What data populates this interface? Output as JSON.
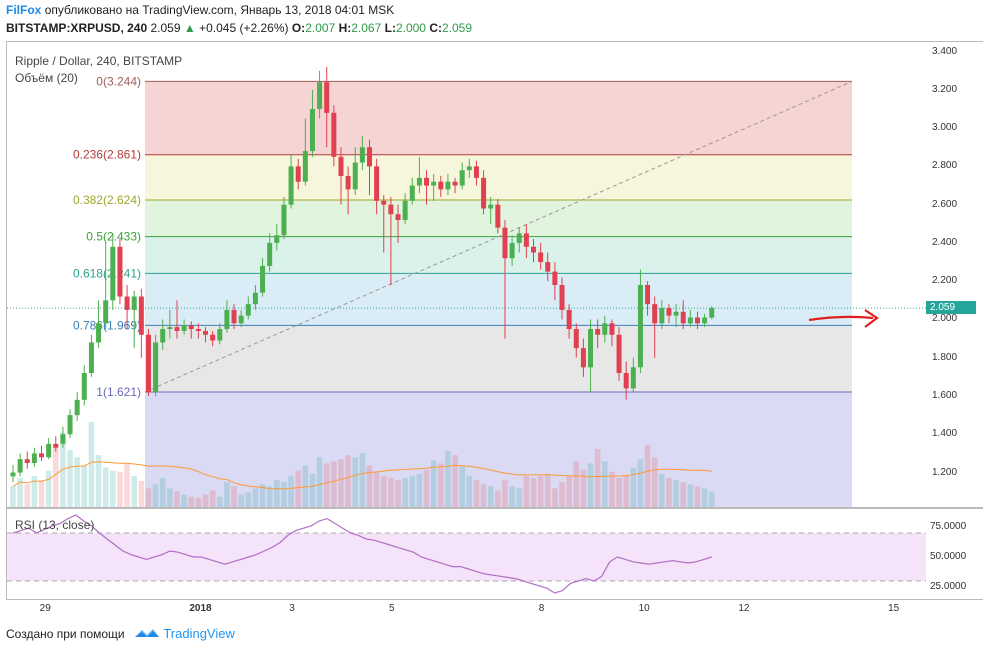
{
  "header": {
    "author": "FilFox",
    "published": "опубликовано на TradingView.com, Январь 13, 2018 04:01 MSK",
    "symbol": "BITSTAMP:XRPUSD, 240",
    "last": "2.059",
    "change": "+0.045 (+2.26%)",
    "o_label": "O:",
    "o_value": "2.007",
    "h_label": "H:",
    "h_value": "2.067",
    "l_label": "L:",
    "l_value": "2.000",
    "c_label": "C:",
    "c_value": "2.059"
  },
  "chart": {
    "title": "Ripple / Dollar, 240, BITSTAMP",
    "volume_label": "Объём (20)",
    "rsi_label": "RSI (13, close)",
    "last_price_label": "2.059"
  },
  "footer": {
    "created_with": "Создано при помощи",
    "brand": "TradingView"
  },
  "colors": {
    "bull": "#26a69a",
    "bear": "#ef5350",
    "bull_candle": "#4caf50",
    "bear_candle": "#e0404f",
    "volume_ma": "#ff9933",
    "rsi_line": "#b06fc5",
    "annotation_arrow": "#e02020"
  },
  "chart_data": [
    {
      "type": "candlestick",
      "title": "Ripple / Dollar, 240, BITSTAMP",
      "y_ticks": [
        "3.400",
        "3.200",
        "3.000",
        "2.800",
        "2.600",
        "2.400",
        "2.200",
        "2.000",
        "1.800",
        "1.600",
        "1.400",
        "1.200"
      ],
      "y_range": [
        1.02,
        3.45
      ],
      "x_ticks": [
        "29",
        "2018",
        "3",
        "5",
        "8",
        "10",
        "12",
        "15"
      ],
      "fib_levels": [
        {
          "label": "0(3.244)",
          "ratio": 0,
          "price": 3.244,
          "color": "#9e5b5b",
          "fill": "#f4cccc"
        },
        {
          "label": "0.236(2.861)",
          "ratio": 0.236,
          "price": 2.861,
          "color": "#b33b3b",
          "fill": "#f3f4d6"
        },
        {
          "label": "0.382(2.624)",
          "ratio": 0.382,
          "price": 2.624,
          "color": "#a0a62a",
          "fill": "#dcf2d8"
        },
        {
          "label": "0.5(2.433)",
          "ratio": 0.5,
          "price": 2.433,
          "color": "#3aa23a",
          "fill": "#d3f0e6"
        },
        {
          "label": "0.618(2.241)",
          "ratio": 0.618,
          "price": 2.241,
          "color": "#2da08c",
          "fill": "#d3e9f3"
        },
        {
          "label": "0.786(1.969)",
          "ratio": 0.786,
          "price": 1.969,
          "color": "#3d7fb8",
          "fill": "#e3e3e3"
        },
        {
          "label": "1(1.621)",
          "ratio": 1,
          "price": 1.621,
          "color": "#6a6abf",
          "fill": "#d4d4f2"
        }
      ],
      "candles": [
        [
          1.18,
          1.2,
          1.15,
          1.24
        ],
        [
          1.2,
          1.27,
          1.18,
          1.3
        ],
        [
          1.27,
          1.25,
          1.22,
          1.31
        ],
        [
          1.25,
          1.3,
          1.23,
          1.33
        ],
        [
          1.3,
          1.28,
          1.26,
          1.34
        ],
        [
          1.28,
          1.35,
          1.27,
          1.38
        ],
        [
          1.35,
          1.33,
          1.31,
          1.39
        ],
        [
          1.35,
          1.4,
          1.33,
          1.44
        ],
        [
          1.4,
          1.5,
          1.38,
          1.53
        ],
        [
          1.5,
          1.58,
          1.47,
          1.62
        ],
        [
          1.58,
          1.72,
          1.55,
          1.76
        ],
        [
          1.72,
          1.88,
          1.7,
          1.92
        ],
        [
          1.88,
          1.98,
          1.85,
          2.1
        ],
        [
          1.98,
          2.1,
          1.95,
          2.4
        ],
        [
          2.1,
          2.38,
          2.05,
          2.45
        ],
        [
          2.38,
          2.12,
          2.08,
          2.42
        ],
        [
          2.12,
          2.05,
          1.95,
          2.18
        ],
        [
          2.05,
          2.12,
          1.85,
          2.15
        ],
        [
          2.12,
          1.92,
          1.8,
          2.16
        ],
        [
          1.92,
          1.62,
          1.6,
          1.95
        ],
        [
          1.62,
          1.88,
          1.6,
          1.92
        ],
        [
          1.88,
          1.95,
          1.84,
          2.0
        ],
        [
          1.95,
          1.96,
          1.9,
          2.05
        ],
        [
          1.96,
          1.94,
          1.9,
          2.1
        ],
        [
          1.94,
          1.97,
          1.92,
          2.0
        ],
        [
          1.97,
          1.95,
          1.9,
          1.99
        ],
        [
          1.95,
          1.94,
          1.9,
          1.98
        ],
        [
          1.94,
          1.92,
          1.88,
          1.96
        ],
        [
          1.92,
          1.89,
          1.86,
          1.94
        ],
        [
          1.89,
          1.95,
          1.87,
          1.98
        ],
        [
          1.95,
          2.05,
          1.93,
          2.1
        ],
        [
          2.05,
          1.98,
          1.95,
          2.08
        ],
        [
          1.98,
          2.02,
          1.96,
          2.05
        ],
        [
          2.02,
          2.08,
          2.0,
          2.12
        ],
        [
          2.08,
          2.14,
          2.05,
          2.18
        ],
        [
          2.14,
          2.28,
          2.12,
          2.32
        ],
        [
          2.28,
          2.4,
          2.25,
          2.45
        ],
        [
          2.4,
          2.44,
          2.36,
          2.5
        ],
        [
          2.44,
          2.6,
          2.42,
          2.64
        ],
        [
          2.6,
          2.8,
          2.58,
          2.86
        ],
        [
          2.8,
          2.72,
          2.68,
          2.84
        ],
        [
          2.72,
          2.88,
          2.7,
          3.05
        ],
        [
          2.88,
          3.1,
          2.85,
          3.2
        ],
        [
          3.1,
          3.24,
          3.05,
          3.3
        ],
        [
          3.24,
          3.08,
          2.9,
          3.32
        ],
        [
          3.08,
          2.85,
          2.8,
          3.12
        ],
        [
          2.85,
          2.75,
          2.6,
          2.9
        ],
        [
          2.75,
          2.68,
          2.55,
          2.8
        ],
        [
          2.68,
          2.82,
          2.65,
          2.9
        ],
        [
          2.82,
          2.9,
          2.78,
          2.96
        ],
        [
          2.9,
          2.8,
          2.65,
          2.94
        ],
        [
          2.8,
          2.62,
          2.55,
          2.84
        ],
        [
          2.62,
          2.6,
          2.35,
          2.65
        ],
        [
          2.6,
          2.55,
          2.18,
          2.64
        ],
        [
          2.55,
          2.52,
          2.4,
          2.6
        ],
        [
          2.52,
          2.62,
          2.5,
          2.66
        ],
        [
          2.62,
          2.7,
          2.6,
          2.74
        ],
        [
          2.7,
          2.74,
          2.66,
          2.85
        ],
        [
          2.74,
          2.7,
          2.6,
          2.78
        ],
        [
          2.7,
          2.72,
          2.62,
          2.76
        ],
        [
          2.72,
          2.68,
          2.64,
          2.75
        ],
        [
          2.68,
          2.72,
          2.65,
          2.76
        ],
        [
          2.72,
          2.7,
          2.66,
          2.74
        ],
        [
          2.7,
          2.78,
          2.68,
          2.82
        ],
        [
          2.78,
          2.8,
          2.74,
          2.84
        ],
        [
          2.8,
          2.74,
          2.7,
          2.83
        ],
        [
          2.74,
          2.58,
          2.55,
          2.78
        ],
        [
          2.58,
          2.6,
          2.5,
          2.64
        ],
        [
          2.6,
          2.48,
          2.45,
          2.63
        ],
        [
          2.48,
          2.32,
          1.9,
          2.52
        ],
        [
          2.32,
          2.4,
          2.28,
          2.44
        ],
        [
          2.4,
          2.45,
          2.35,
          2.48
        ],
        [
          2.45,
          2.38,
          2.32,
          2.5
        ],
        [
          2.38,
          2.35,
          2.3,
          2.42
        ],
        [
          2.35,
          2.3,
          2.26,
          2.4
        ],
        [
          2.3,
          2.25,
          2.2,
          2.35
        ],
        [
          2.25,
          2.18,
          2.1,
          2.3
        ],
        [
          2.18,
          2.05,
          2.0,
          2.22
        ],
        [
          2.05,
          1.95,
          1.9,
          2.08
        ],
        [
          1.95,
          1.85,
          1.8,
          1.98
        ],
        [
          1.85,
          1.75,
          1.7,
          1.9
        ],
        [
          1.75,
          1.95,
          1.62,
          2.0
        ],
        [
          1.95,
          1.92,
          1.85,
          2.0
        ],
        [
          1.92,
          1.98,
          1.88,
          2.02
        ],
        [
          1.98,
          1.92,
          1.86,
          2.0
        ],
        [
          1.92,
          1.72,
          1.68,
          1.96
        ],
        [
          1.72,
          1.64,
          1.58,
          1.78
        ],
        [
          1.64,
          1.75,
          1.62,
          1.8
        ],
        [
          1.75,
          2.18,
          1.72,
          2.26
        ],
        [
          2.18,
          2.08,
          2.02,
          2.2
        ],
        [
          2.08,
          1.98,
          1.8,
          2.12
        ],
        [
          1.98,
          2.06,
          1.95,
          2.1
        ],
        [
          2.06,
          2.02,
          1.98,
          2.08
        ],
        [
          2.02,
          2.04,
          1.96,
          2.08
        ],
        [
          2.04,
          1.98,
          1.95,
          2.1
        ],
        [
          1.98,
          2.01,
          1.96,
          2.05
        ],
        [
          2.01,
          1.98,
          1.95,
          2.04
        ],
        [
          1.98,
          2.01,
          1.96,
          2.03
        ],
        [
          2.01,
          2.06,
          2.0,
          2.07
        ]
      ],
      "volume_bars": [
        20,
        28,
        22,
        30,
        25,
        35,
        60,
        72,
        55,
        48,
        40,
        82,
        50,
        38,
        35,
        34,
        42,
        30,
        25,
        18,
        22,
        28,
        18,
        15,
        12,
        10,
        9,
        12,
        16,
        10,
        24,
        20,
        12,
        14,
        18,
        22,
        20,
        26,
        24,
        30,
        35,
        40,
        32,
        48,
        42,
        44,
        46,
        50,
        48,
        52,
        40,
        34,
        30,
        28,
        26,
        28,
        30,
        32,
        36,
        45,
        42,
        54,
        50,
        40,
        30,
        26,
        22,
        20,
        16,
        26,
        20,
        18,
        30,
        28,
        30,
        32,
        18,
        24,
        30,
        44,
        36,
        42,
        56,
        44,
        34,
        28,
        30,
        38,
        46,
        60,
        48,
        32,
        28,
        26,
        24,
        22,
        20,
        18,
        15
      ],
      "last_price": 2.059
    },
    {
      "type": "line",
      "title": "RSI (13, close)",
      "y_ticks": [
        "75.0000",
        "50.0000",
        "25.0000"
      ],
      "y_range": [
        15,
        90
      ],
      "bands": [
        70,
        30
      ],
      "values": [
        70,
        72,
        74,
        70,
        73,
        76,
        78,
        82,
        85,
        80,
        76,
        70,
        65,
        60,
        55,
        52,
        50,
        48,
        50,
        52,
        55,
        54,
        52,
        50,
        50,
        48,
        46,
        44,
        46,
        48,
        50,
        52,
        55,
        58,
        62,
        68,
        72,
        74,
        76,
        80,
        82,
        78,
        74,
        70,
        68,
        65,
        64,
        62,
        60,
        58,
        56,
        54,
        50,
        48,
        46,
        44,
        42,
        42,
        40,
        38,
        36,
        35,
        34,
        33,
        32,
        30,
        28,
        26,
        24,
        20,
        22,
        28,
        30,
        32,
        30,
        34,
        46,
        50,
        48,
        46,
        45,
        44,
        45,
        46,
        47,
        46,
        45,
        46,
        48,
        50
      ]
    }
  ]
}
